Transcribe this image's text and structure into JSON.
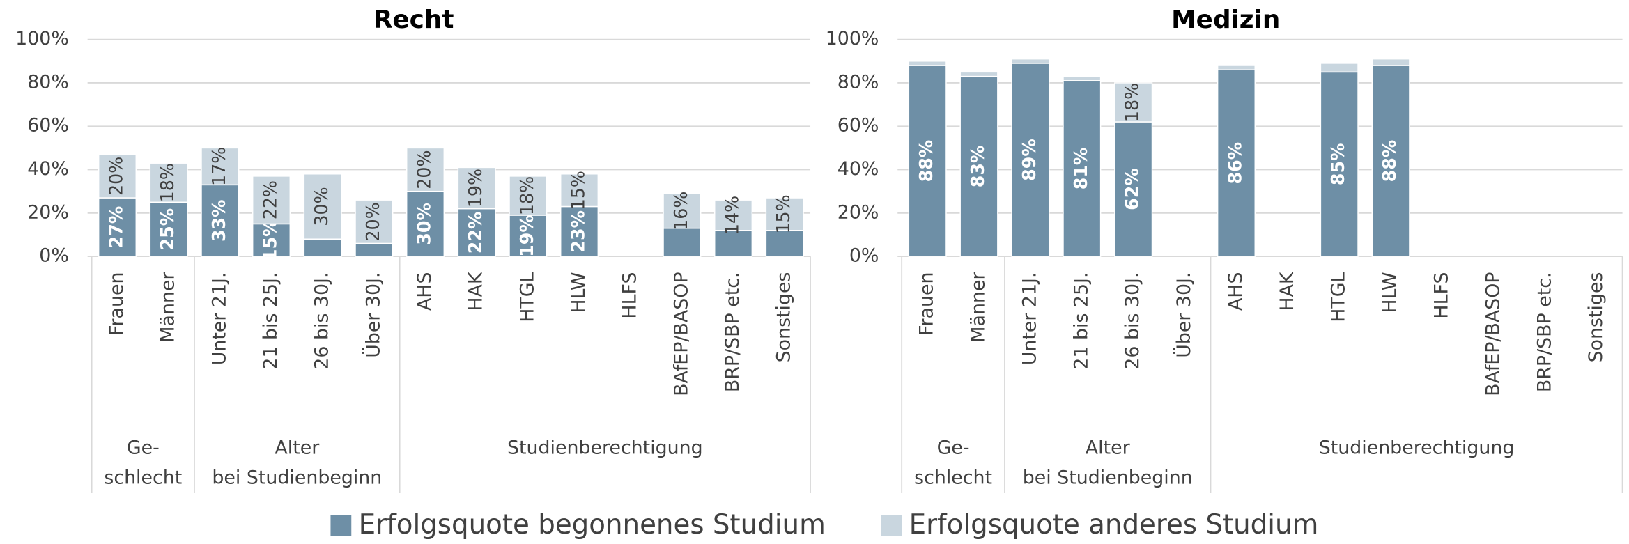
{
  "chart_data": [
    {
      "type": "bar",
      "stacked": true,
      "title": "Recht",
      "categories": [
        "Frauen",
        "Männer",
        "Unter 21J.",
        "21 bis 25J.",
        "26 bis 30J.",
        "Über 30J.",
        "AHS",
        "HAK",
        "HTGL",
        "HLW",
        "HLFS",
        "BAfEP/BASOP",
        "BRP/SBP etc.",
        "Sonstiges"
      ],
      "groups": [
        {
          "label": [
            "Ge-",
            "schlecht"
          ],
          "size": 2
        },
        {
          "label": [
            "Alter",
            "bei Studienbeginn"
          ],
          "size": 4
        },
        {
          "label": [
            "Studienberechtigung"
          ],
          "size": 8
        }
      ],
      "series": [
        {
          "name": "Erfolgsquote begonnenes Studium",
          "color": "#6e8fa6",
          "values": [
            27,
            25,
            33,
            15,
            8,
            6,
            30,
            22,
            19,
            23,
            null,
            13,
            12,
            12
          ],
          "value_labels": [
            "27%",
            "25%",
            "33%",
            "15%",
            null,
            null,
            "30%",
            "22%",
            "19%",
            "23%",
            null,
            null,
            null,
            null
          ]
        },
        {
          "name": "Erfolgsquote anderes Studium",
          "color": "#c9d6df",
          "values": [
            20,
            18,
            17,
            22,
            30,
            20,
            20,
            19,
            18,
            15,
            null,
            16,
            14,
            15
          ],
          "value_labels": [
            "20%",
            "18%",
            "17%",
            "22%",
            "30%",
            "20%",
            "20%",
            "19%",
            "18%",
            "15%",
            null,
            "16%",
            "14%",
            "15%"
          ]
        }
      ],
      "ylim": [
        0,
        100
      ],
      "yticks": [
        {
          "value": 0,
          "label": "0%"
        },
        {
          "value": 20,
          "label": "20%"
        },
        {
          "value": 40,
          "label": "40%"
        },
        {
          "value": 60,
          "label": "60%"
        },
        {
          "value": 80,
          "label": "80%"
        },
        {
          "value": 100,
          "label": "100%"
        }
      ],
      "grid": true
    },
    {
      "type": "bar",
      "stacked": true,
      "title": "Medizin",
      "categories": [
        "Frauen",
        "Männer",
        "Unter 21J.",
        "21 bis 25J.",
        "26 bis 30J.",
        "Über 30J.",
        "AHS",
        "HAK",
        "HTGL",
        "HLW",
        "HLFS",
        "BAfEP/BASOP",
        "BRP/SBP etc.",
        "Sonstiges"
      ],
      "groups": [
        {
          "label": [
            "Ge-",
            "schlecht"
          ],
          "size": 2
        },
        {
          "label": [
            "Alter",
            "bei Studienbeginn"
          ],
          "size": 4
        },
        {
          "label": [
            "Studienberechtigung"
          ],
          "size": 8
        }
      ],
      "series": [
        {
          "color": "#6e8fa6",
          "values": [
            88,
            83,
            89,
            81,
            62,
            null,
            86,
            null,
            85,
            88,
            null,
            null,
            null,
            null
          ],
          "value_labels": [
            "88%",
            "83%",
            "89%",
            "81%",
            "62%",
            null,
            "86%",
            null,
            "85%",
            "88%",
            null,
            null,
            null,
            null
          ]
        },
        {
          "color": "#c9d6df",
          "values": [
            2,
            2,
            2,
            2,
            18,
            null,
            2,
            null,
            4,
            3,
            null,
            null,
            null,
            null
          ],
          "value_labels": [
            null,
            null,
            null,
            null,
            "18%",
            null,
            null,
            null,
            null,
            null,
            null,
            null,
            null,
            null
          ]
        }
      ],
      "ylim": [
        0,
        100
      ],
      "yticks": [
        {
          "value": 0,
          "label": "0%"
        },
        {
          "value": 20,
          "label": "20%"
        },
        {
          "value": 40,
          "label": "40%"
        },
        {
          "value": 60,
          "label": "60%"
        },
        {
          "value": 80,
          "label": "80%"
        },
        {
          "value": 100,
          "label": "100%"
        }
      ],
      "grid": true
    }
  ]
}
